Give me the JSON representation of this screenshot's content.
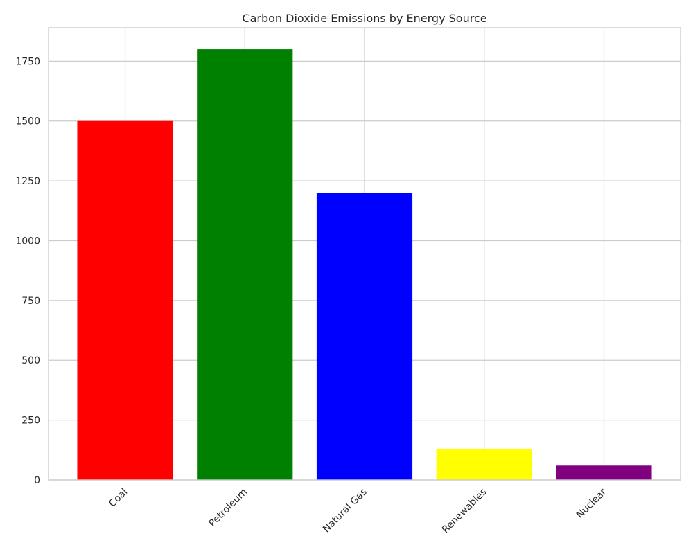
{
  "chart_data": {
    "type": "bar",
    "title": "Carbon Dioxide Emissions by Energy Source",
    "xlabel": "",
    "ylabel": "",
    "categories": [
      "Coal",
      "Petroleum",
      "Natural Gas",
      "Renewables",
      "Nuclear"
    ],
    "values": [
      1500,
      1800,
      1200,
      130,
      60
    ],
    "colors": [
      "#ff0000",
      "#008000",
      "#0000ff",
      "#ffff00",
      "#800080"
    ],
    "ylim": [
      0,
      1890
    ],
    "yticks": [
      0,
      250,
      500,
      750,
      1000,
      1250,
      1500,
      1750
    ],
    "grid": true,
    "xtick_rotation": 45,
    "legend": "none"
  }
}
